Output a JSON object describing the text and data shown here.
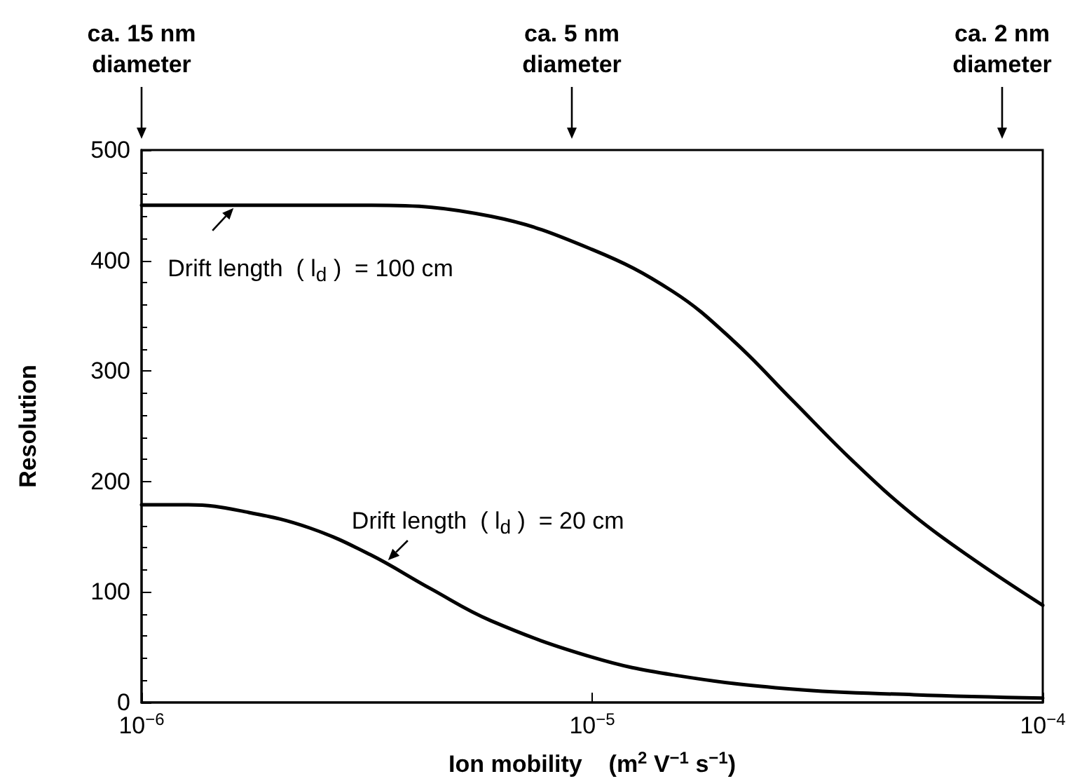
{
  "chart_data": {
    "type": "line",
    "xlabel": "Ion mobility    (m$^{2}$ V$^{−1}$ s$^{−1}$)",
    "ylabel": "Resolution",
    "log": "x",
    "xlim": [
      1e-06,
      0.0001
    ],
    "xticks": [
      {
        "value": 1e-06,
        "label": "10$^{−6}$"
      },
      {
        "value": 1e-05,
        "label": "10$^{−5}$"
      },
      {
        "value": 0.0001,
        "label": "10$^{−4}$"
      }
    ],
    "ylim": [
      0,
      500
    ],
    "yticks": [
      0,
      100,
      200,
      300,
      400,
      500
    ],
    "marker": "none",
    "line_style": "solid",
    "series": [
      {
        "color": "#000000",
        "x": [
          1e-06,
          3.24e-06,
          5.96e-06,
          1e-05,
          1.51e-05,
          2.05e-05,
          2.79e-05,
          3.8e-05,
          5.18e-05,
          7.05e-05,
          0.0001
        ],
        "values": [
          450,
          450,
          440,
          410,
          372,
          328,
          273,
          218,
          169,
          129,
          88
        ]
      },
      {
        "color": "#000000",
        "x": [
          1e-06,
          1.27e-06,
          1.73e-06,
          2.36e-06,
          3.21e-06,
          4.38e-06,
          5.96e-06,
          1e-05,
          1.51e-05,
          2.79e-05,
          5.18e-05,
          0.0001
        ],
        "values": [
          179,
          179,
          172,
          158,
          134,
          103,
          74,
          41,
          25,
          12,
          7,
          4
        ]
      }
    ],
    "annotations": [
      "ca. 15 nm\ndiameter",
      "ca. 5 nm\ndiameter",
      "ca. 2 nm\ndiameter",
      {
        "text": "Drift length  ( l$_{d}$ )  = 100 cm",
        "x": 1.6e-06,
        "y": 450
      },
      {
        "text": "Drift length  ( l$_{d}$ )  = 20 cm",
        "x": 3.5e-06,
        "y": 125
      }
    ]
  }
}
